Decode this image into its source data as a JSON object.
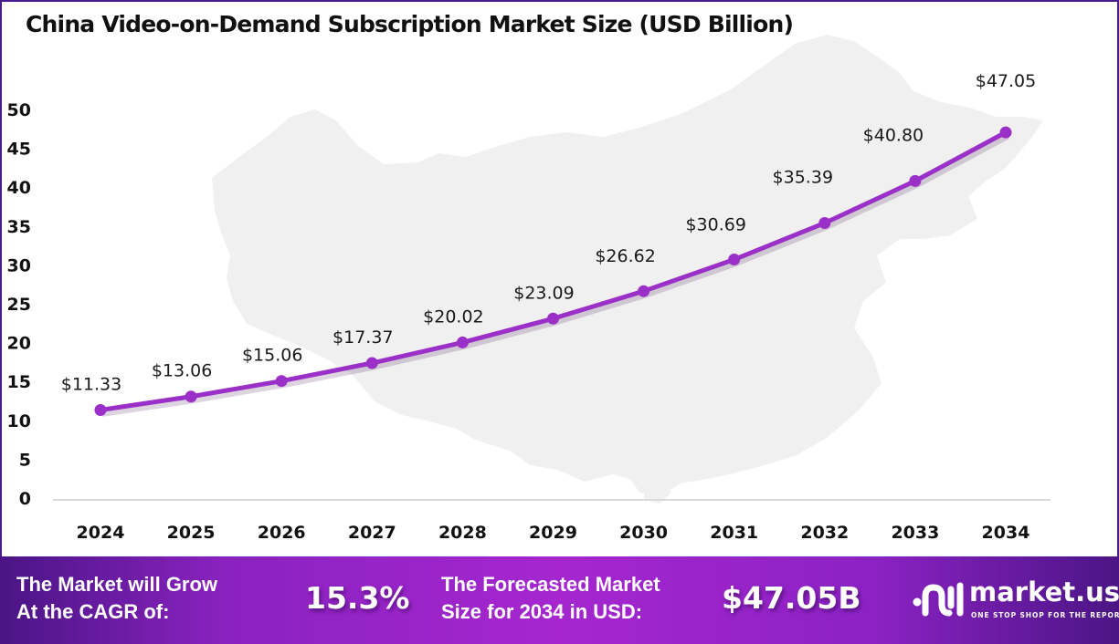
{
  "chart_data": {
    "type": "line",
    "title": "China Video-on-Demand Subscription Market Size (USD Billion)",
    "xlabel": "",
    "ylabel": "",
    "x": [
      "2024",
      "2025",
      "2026",
      "2027",
      "2028",
      "2029",
      "2030",
      "2031",
      "2032",
      "2033",
      "2034"
    ],
    "series": [
      {
        "name": "Market Size (USD Billion)",
        "values": [
          11.33,
          13.06,
          15.06,
          17.37,
          20.02,
          23.09,
          26.62,
          30.69,
          35.39,
          40.8,
          47.05
        ],
        "labels": [
          "$11.33",
          "$13.06",
          "$15.06",
          "$17.37",
          "$20.02",
          "$23.09",
          "$26.62",
          "$30.69",
          "$35.39",
          "$40.80",
          "$47.05"
        ],
        "color": "#9b30c8"
      }
    ],
    "ylim": [
      0,
      50
    ],
    "yticks": [
      "0",
      "5",
      "10",
      "15",
      "20",
      "25",
      "30",
      "35",
      "40",
      "45",
      "50"
    ],
    "grid": false,
    "legend": "none"
  },
  "banner": {
    "cagr_text_line1": "The Market will Grow",
    "cagr_text_line2": "At the CAGR of:",
    "cagr_value": "15.3%",
    "forecast_text_line1": "The Forecasted Market",
    "forecast_text_line2": "Size for 2034 in USD:",
    "forecast_value": "$47.05B"
  },
  "brand": {
    "name": "market.us",
    "tagline": "ONE STOP SHOP FOR THE REPORTS",
    "icon": "market-us-logo-icon"
  },
  "colors": {
    "line": "#9b30c8",
    "frame": "#4a1b8c",
    "banner_dark": "#4a1585",
    "banner_light": "#a526cf",
    "map_fill": "#f0f0f0"
  }
}
